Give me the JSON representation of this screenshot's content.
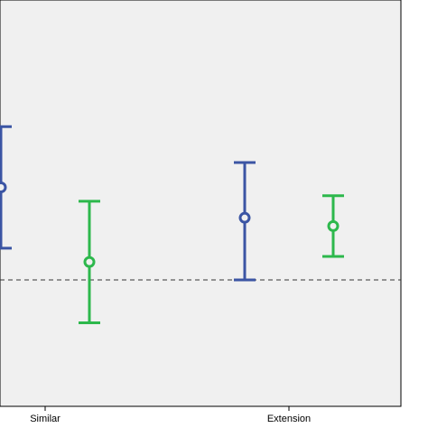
{
  "chart_data": {
    "type": "errorbar",
    "title": "",
    "xlabel": "",
    "ylabel": "",
    "categories": [
      "Similar",
      "Extension"
    ],
    "ylim": [
      0,
      1
    ],
    "reference_line": {
      "y": 0.445,
      "style": "dashed"
    },
    "grid": false,
    "series": [
      {
        "color": "#3b55a4",
        "points": [
          {
            "category": "Similar",
            "mean": 0.78,
            "lower": 0.56,
            "upper": 1.0
          },
          {
            "category": "Extension",
            "mean": 0.67,
            "lower": 0.445,
            "upper": 0.87
          }
        ]
      },
      {
        "color": "#2db84c",
        "points": [
          {
            "category": "Similar",
            "mean": 0.51,
            "lower": 0.29,
            "upper": 0.73
          },
          {
            "category": "Extension",
            "mean": 0.64,
            "lower": 0.53,
            "upper": 0.75
          }
        ]
      }
    ]
  }
}
